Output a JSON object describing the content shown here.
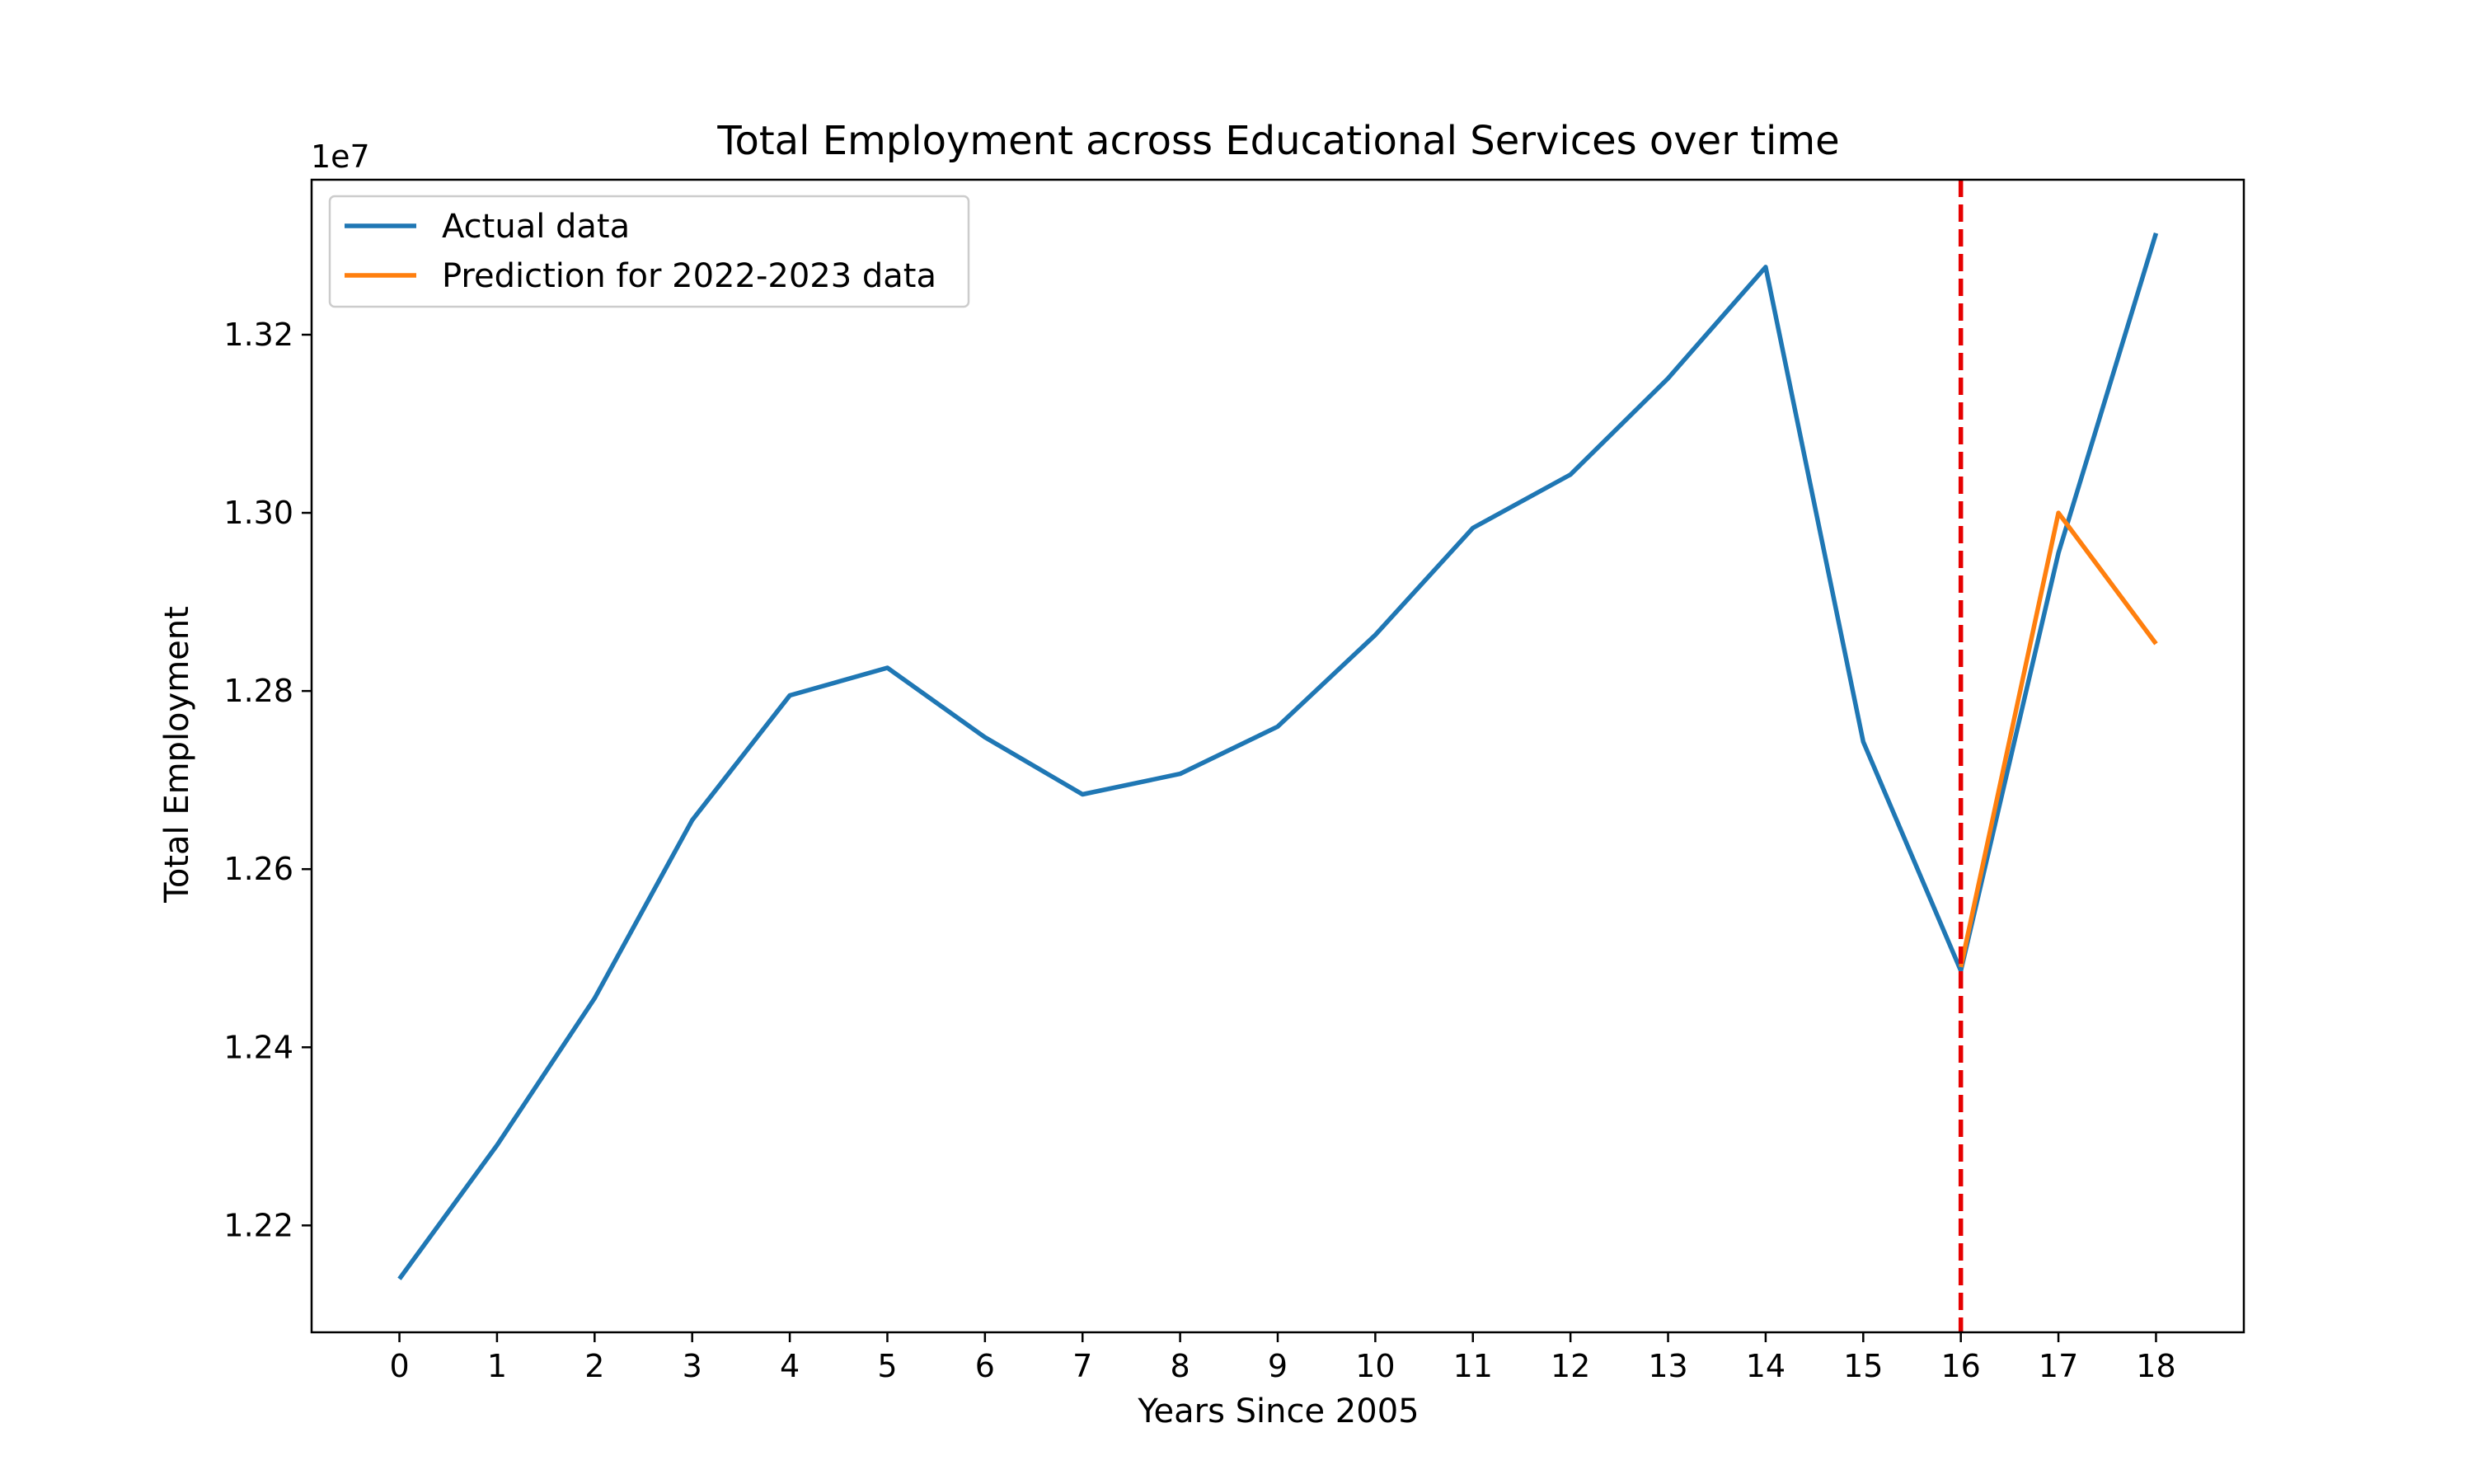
{
  "chart_data": {
    "type": "line",
    "title": "Total Employment across Educational Services over time",
    "xlabel": "Years Since 2005",
    "ylabel": "Total Employment",
    "y_offset_label": "1e7",
    "y_scale_factor": 10000000,
    "xlim": [
      -0.9,
      18.9
    ],
    "ylim": [
      12.08,
      13.374
    ],
    "x_ticks": [
      0,
      1,
      2,
      3,
      4,
      5,
      6,
      7,
      8,
      9,
      10,
      11,
      12,
      13,
      14,
      15,
      16,
      17,
      18
    ],
    "y_ticks": [
      1.22,
      1.24,
      1.26,
      1.28,
      1.3,
      1.32
    ],
    "grid": false,
    "legend_position": "top-left",
    "series": [
      {
        "name": "Actual data",
        "color": "#1f77b4",
        "x": [
          0,
          1,
          2,
          3,
          4,
          5,
          6,
          7,
          8,
          9,
          10,
          11,
          12,
          13,
          14,
          15,
          16,
          17,
          18
        ],
        "y": [
          12.14,
          12.29,
          12.455,
          12.655,
          12.795,
          12.826,
          12.748,
          12.684,
          12.707,
          12.76,
          12.863,
          12.983,
          13.043,
          13.151,
          13.276,
          12.743,
          12.486,
          12.955,
          13.314
        ]
      },
      {
        "name": "Prediction for 2022-2023 data",
        "color": "#ff7f0e",
        "x": [
          16,
          17,
          18
        ],
        "y": [
          12.49,
          13.0,
          12.853
        ]
      }
    ],
    "annotations": [
      {
        "type": "vline",
        "x": 16,
        "color": "#e60000",
        "style": "dashed"
      }
    ]
  }
}
